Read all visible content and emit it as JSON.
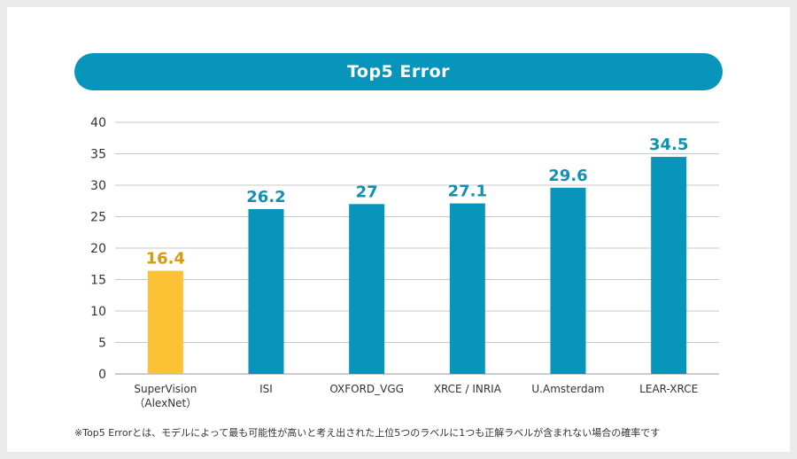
{
  "chart_data": {
    "type": "bar",
    "title": "Top5 Error",
    "categories": [
      {
        "line1": "SuperVision",
        "line2": "（AlexNet）"
      },
      {
        "line1": "ISI",
        "line2": ""
      },
      {
        "line1": "OXFORD_VGG",
        "line2": ""
      },
      {
        "line1": "XRCE / INRIA",
        "line2": ""
      },
      {
        "line1": "U.Amsterdam",
        "line2": ""
      },
      {
        "line1": "LEAR-XRCE",
        "line2": ""
      }
    ],
    "values": [
      16.4,
      26.2,
      27,
      27.1,
      29.6,
      34.5
    ],
    "value_labels": [
      "16.4",
      "26.2",
      "27",
      "27.1",
      "29.6",
      "34.5"
    ],
    "ylim": [
      0,
      40
    ],
    "yticks": [
      0,
      5,
      10,
      15,
      20,
      25,
      30,
      35,
      40
    ],
    "grid": true,
    "colors": {
      "highlight": "#fdc135",
      "highlight_label": "#d79a0f",
      "bar": "#0895bb",
      "bar_label": "#1190b3",
      "grid": "#c8c8c8",
      "title_bg": "#0895bb"
    },
    "highlight_index": 0
  },
  "footnote": "※Top5 Errorとは、モデルによって最も可能性が高いと考え出された上位5つのラベルに1つも正解ラベルが含まれない場合の確率です"
}
